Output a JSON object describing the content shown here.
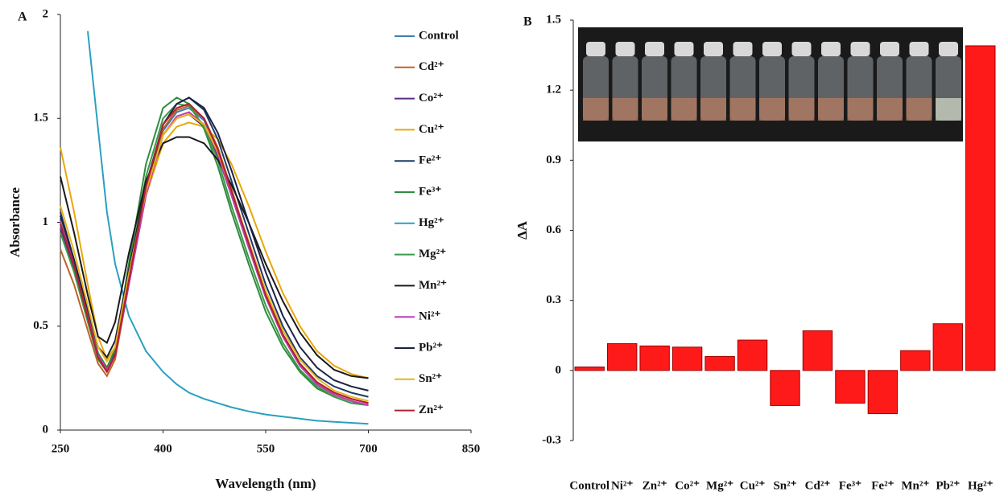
{
  "chart_data": [
    {
      "type": "line",
      "panel_label": "A",
      "x_label": "Wavelength (nm)",
      "y_label": "Absorbance",
      "xlim": [
        250,
        850
      ],
      "xticks": [
        250,
        400,
        550,
        700,
        850
      ],
      "ylim": [
        0,
        2
      ],
      "yticks": [
        0,
        0.5,
        1,
        1.5,
        2
      ],
      "x": [
        250,
        270,
        290,
        305,
        318,
        330,
        350,
        375,
        400,
        420,
        438,
        460,
        480,
        500,
        525,
        550,
        575,
        600,
        625,
        650,
        675,
        700
      ],
      "series": [
        {
          "name": "Control",
          "color": "#3b7fae",
          "values": [
            0.98,
            0.79,
            0.54,
            0.36,
            0.29,
            0.36,
            0.7,
            1.14,
            1.44,
            1.53,
            1.55,
            1.49,
            1.35,
            1.15,
            0.9,
            0.65,
            0.46,
            0.32,
            0.23,
            0.18,
            0.15,
            0.13
          ]
        },
        {
          "name": "Cd²⁺",
          "color": "#c0622a",
          "values": [
            0.87,
            0.7,
            0.48,
            0.32,
            0.26,
            0.34,
            0.7,
            1.15,
            1.45,
            1.54,
            1.56,
            1.5,
            1.36,
            1.16,
            0.9,
            0.66,
            0.46,
            0.32,
            0.23,
            0.18,
            0.15,
            0.13
          ]
        },
        {
          "name": "Co²⁺",
          "color": "#5b2a86",
          "values": [
            0.97,
            0.78,
            0.53,
            0.35,
            0.29,
            0.36,
            0.7,
            1.13,
            1.42,
            1.5,
            1.52,
            1.46,
            1.32,
            1.13,
            0.88,
            0.64,
            0.45,
            0.31,
            0.22,
            0.17,
            0.14,
            0.12
          ]
        },
        {
          "name": "Cu²⁺",
          "color": "#e8a80a",
          "values": [
            1.36,
            1.05,
            0.7,
            0.45,
            0.34,
            0.4,
            0.73,
            1.13,
            1.38,
            1.46,
            1.48,
            1.46,
            1.4,
            1.28,
            1.08,
            0.86,
            0.66,
            0.5,
            0.38,
            0.31,
            0.27,
            0.25
          ]
        },
        {
          "name": "Fe²⁺",
          "color": "#1f3a68",
          "values": [
            1.05,
            0.82,
            0.56,
            0.37,
            0.3,
            0.37,
            0.71,
            1.15,
            1.47,
            1.57,
            1.6,
            1.54,
            1.4,
            1.2,
            0.95,
            0.7,
            0.5,
            0.35,
            0.26,
            0.21,
            0.18,
            0.16
          ]
        },
        {
          "name": "Fe³⁺",
          "color": "#2e8b3e",
          "values": [
            1.0,
            0.8,
            0.55,
            0.37,
            0.3,
            0.39,
            0.8,
            1.28,
            1.55,
            1.6,
            1.57,
            1.45,
            1.27,
            1.05,
            0.8,
            0.57,
            0.4,
            0.28,
            0.2,
            0.16,
            0.13,
            0.12
          ]
        },
        {
          "name": "Hg²⁺",
          "color": "#2aa0c0",
          "values": [
            null,
            null,
            1.92,
            1.45,
            1.05,
            0.8,
            0.55,
            0.38,
            0.28,
            0.22,
            0.18,
            0.15,
            0.13,
            0.11,
            0.09,
            0.075,
            0.065,
            0.055,
            0.045,
            0.04,
            0.035,
            0.03
          ]
        },
        {
          "name": "Mg²⁺",
          "color": "#3a9a48",
          "values": [
            0.95,
            0.76,
            0.52,
            0.34,
            0.28,
            0.36,
            0.76,
            1.22,
            1.5,
            1.57,
            1.56,
            1.46,
            1.3,
            1.08,
            0.83,
            0.6,
            0.42,
            0.29,
            0.21,
            0.16,
            0.13,
            0.12
          ]
        },
        {
          "name": "Mn²⁺",
          "color": "#1a1a1a",
          "values": [
            1.22,
            0.95,
            0.65,
            0.45,
            0.42,
            0.52,
            0.85,
            1.2,
            1.38,
            1.41,
            1.41,
            1.38,
            1.3,
            1.18,
            1.0,
            0.8,
            0.62,
            0.47,
            0.36,
            0.29,
            0.26,
            0.25
          ]
        },
        {
          "name": "Ni²⁺",
          "color": "#c13bb3",
          "values": [
            1.0,
            0.8,
            0.55,
            0.36,
            0.29,
            0.36,
            0.7,
            1.13,
            1.42,
            1.51,
            1.53,
            1.47,
            1.33,
            1.13,
            0.88,
            0.64,
            0.45,
            0.31,
            0.22,
            0.17,
            0.14,
            0.12
          ]
        },
        {
          "name": "Pb²⁺",
          "color": "#1c2340",
          "values": [
            1.03,
            0.82,
            0.58,
            0.4,
            0.35,
            0.43,
            0.77,
            1.18,
            1.47,
            1.57,
            1.6,
            1.55,
            1.43,
            1.25,
            1.0,
            0.76,
            0.55,
            0.4,
            0.3,
            0.24,
            0.21,
            0.19
          ]
        },
        {
          "name": "Sn²⁺",
          "color": "#e8b417",
          "values": [
            1.08,
            0.86,
            0.6,
            0.4,
            0.33,
            0.4,
            0.75,
            1.15,
            1.42,
            1.5,
            1.52,
            1.47,
            1.34,
            1.15,
            0.91,
            0.67,
            0.48,
            0.34,
            0.25,
            0.19,
            0.16,
            0.14
          ]
        },
        {
          "name": "Zn²⁺",
          "color": "#b02030",
          "values": [
            0.99,
            0.79,
            0.54,
            0.35,
            0.28,
            0.36,
            0.72,
            1.17,
            1.47,
            1.55,
            1.57,
            1.5,
            1.35,
            1.15,
            0.9,
            0.65,
            0.46,
            0.32,
            0.23,
            0.18,
            0.15,
            0.13
          ]
        }
      ]
    },
    {
      "type": "bar",
      "panel_label": "B",
      "y_label": "ΔA",
      "color": "#ff1a1a",
      "ylim": [
        -0.3,
        1.5
      ],
      "yticks": [
        -0.3,
        0,
        0.3,
        0.6,
        0.9,
        1.2,
        1.5
      ],
      "categories": [
        "Control",
        "Ni²⁺",
        "Zn²⁺",
        "Co²⁺",
        "Mg²⁺",
        "Cu²⁺",
        "Sn²⁺",
        "Cd²⁺",
        "Fe³⁺",
        "Fe²⁺",
        "Mn²⁺",
        "Pb²⁺",
        "Hg²⁺"
      ],
      "values": [
        0.015,
        0.115,
        0.105,
        0.1,
        0.06,
        0.13,
        -0.15,
        0.17,
        -0.14,
        -0.185,
        0.085,
        0.2,
        1.39
      ]
    }
  ]
}
